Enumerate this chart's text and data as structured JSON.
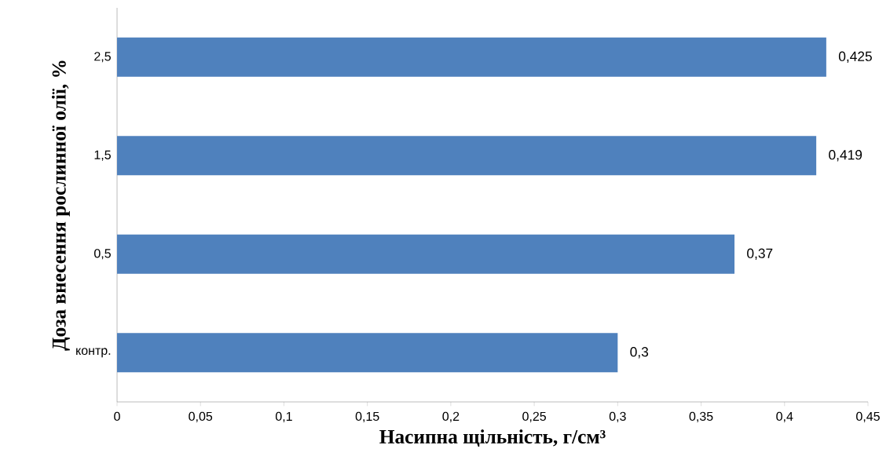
{
  "chart_data": {
    "type": "bar",
    "orientation": "horizontal",
    "categories": [
      "2,5",
      "1,5",
      "0,5",
      "контр."
    ],
    "values": [
      0.425,
      0.419,
      0.37,
      0.3
    ],
    "value_labels": [
      "0,425",
      "0,419",
      "0,37",
      "0,3"
    ],
    "color": "#4f81bd",
    "xlim": [
      0,
      0.45
    ],
    "xticks": [
      0,
      {
        "value": 0.05,
        "label": "0,05"
      },
      {
        "value": 0.1,
        "label": "0,1"
      },
      {
        "value": 0.15,
        "label": "0,15"
      },
      {
        "value": 0.2,
        "label": "0,2"
      },
      {
        "value": 0.25,
        "label": "0,25"
      },
      {
        "value": 0.3,
        "label": "0,3"
      },
      {
        "value": 0.35,
        "label": "0,35"
      },
      {
        "value": 0.4,
        "label": "0,4"
      },
      {
        "value": 0.45,
        "label": "0,45"
      }
    ],
    "xlabel": "Насипна щільність, г/см³",
    "ylabel": "Доза внесення рослинної олії, %"
  }
}
